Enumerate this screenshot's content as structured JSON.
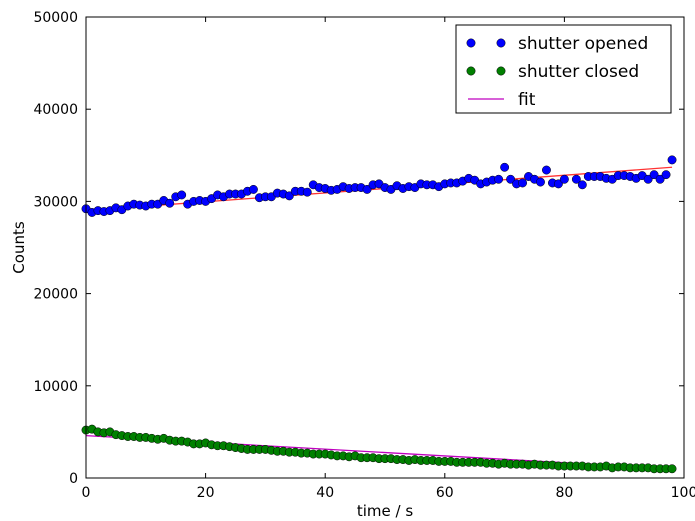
{
  "chart_data": {
    "type": "scatter",
    "title": "",
    "xlabel": "time / s",
    "ylabel": "Counts",
    "xlim": [
      0,
      100
    ],
    "ylim": [
      0,
      50000
    ],
    "xticks": [
      0,
      20,
      40,
      60,
      80,
      100
    ],
    "yticks": [
      0,
      10000,
      20000,
      30000,
      40000,
      50000
    ],
    "grid": false,
    "legend_position": "top-right",
    "series": [
      {
        "name": "shutter opened",
        "marker": "circle",
        "color": "#0000ff",
        "x": [
          0,
          1,
          2,
          3,
          4,
          5,
          6,
          7,
          8,
          9,
          10,
          11,
          12,
          13,
          14,
          15,
          16,
          17,
          18,
          19,
          20,
          21,
          22,
          23,
          24,
          25,
          26,
          27,
          28,
          29,
          30,
          31,
          32,
          33,
          34,
          35,
          36,
          37,
          38,
          39,
          40,
          41,
          42,
          43,
          44,
          45,
          46,
          47,
          48,
          49,
          50,
          51,
          52,
          53,
          54,
          55,
          56,
          57,
          58,
          59,
          60,
          61,
          62,
          63,
          64,
          65,
          66,
          67,
          68,
          69,
          70,
          71,
          72,
          73,
          74,
          75,
          76,
          77,
          78,
          79,
          80,
          81,
          82,
          83,
          84,
          85,
          86,
          87,
          88,
          89,
          90,
          91,
          92,
          93,
          94,
          95,
          96,
          97,
          98
        ],
        "y": [
          29200,
          28800,
          29000,
          28900,
          29000,
          29300,
          29100,
          29500,
          29700,
          29600,
          29500,
          29700,
          29700,
          30100,
          29800,
          30500,
          30700,
          29700,
          30000,
          30100,
          30000,
          30300,
          30700,
          30500,
          30800,
          30800,
          30800,
          31100,
          31300,
          30400,
          30500,
          30500,
          30900,
          30800,
          30600,
          31100,
          31100,
          31000,
          31800,
          31500,
          31400,
          31200,
          31300,
          31600,
          31400,
          31500,
          31500,
          31300,
          31800,
          31900,
          31500,
          31300,
          31700,
          31400,
          31600,
          31500,
          31900,
          31800,
          31800,
          31600,
          31900,
          32000,
          32000,
          32200,
          32500,
          32300,
          31900,
          32100,
          32300,
          32400,
          33700,
          32400,
          31900,
          32000,
          32700,
          32400,
          32100,
          33400,
          32000,
          31900,
          32400,
          null,
          32400,
          31800,
          32700,
          32700,
          32700,
          32500,
          32400,
          32800,
          32800,
          32700,
          32500,
          32800,
          32400,
          32900,
          32400,
          32900,
          34500
        ]
      },
      {
        "name": "shutter closed",
        "marker": "circle",
        "color": "#008000",
        "x": [
          0,
          1,
          2,
          3,
          4,
          5,
          6,
          7,
          8,
          9,
          10,
          11,
          12,
          13,
          14,
          15,
          16,
          17,
          18,
          19,
          20,
          21,
          22,
          23,
          24,
          25,
          26,
          27,
          28,
          29,
          30,
          31,
          32,
          33,
          34,
          35,
          36,
          37,
          38,
          39,
          40,
          41,
          42,
          43,
          44,
          45,
          46,
          47,
          48,
          49,
          50,
          51,
          52,
          53,
          54,
          55,
          56,
          57,
          58,
          59,
          60,
          61,
          62,
          63,
          64,
          65,
          66,
          67,
          68,
          69,
          70,
          71,
          72,
          73,
          74,
          75,
          76,
          77,
          78,
          79,
          80,
          81,
          82,
          83,
          84,
          85,
          86,
          87,
          88,
          89,
          90,
          91,
          92,
          93,
          94,
          95,
          96,
          97,
          98
        ],
        "y": [
          5200,
          5300,
          5000,
          4900,
          5000,
          4700,
          4600,
          4500,
          4500,
          4400,
          4400,
          4300,
          4200,
          4300,
          4100,
          4000,
          4000,
          3900,
          3700,
          3700,
          3800,
          3600,
          3500,
          3500,
          3400,
          3300,
          3200,
          3100,
          3100,
          3100,
          3100,
          3000,
          2900,
          2900,
          2800,
          2800,
          2700,
          2700,
          2600,
          2600,
          2600,
          2500,
          2400,
          2400,
          2300,
          2400,
          2200,
          2200,
          2200,
          2100,
          2100,
          2100,
          2000,
          2000,
          1900,
          2000,
          1900,
          1900,
          1900,
          1800,
          1800,
          1800,
          1700,
          1700,
          1700,
          1700,
          1700,
          1600,
          1600,
          1500,
          1600,
          1500,
          1500,
          1500,
          1400,
          1500,
          1400,
          1400,
          1400,
          1300,
          1300,
          1300,
          1300,
          1300,
          1200,
          1200,
          1200,
          1300,
          1100,
          1200,
          1200,
          1100,
          1100,
          1100,
          1100,
          1000,
          1000,
          1000,
          1000
        ]
      },
      {
        "name": "fit",
        "marker": "line",
        "color": "#bf00bf",
        "x": [
          0,
          98
        ],
        "y": [
          4600,
          1000
        ]
      }
    ],
    "fit_opened": {
      "color": "#ff3333",
      "x": [
        0,
        98
      ],
      "y": [
        29000,
        33700
      ]
    }
  }
}
